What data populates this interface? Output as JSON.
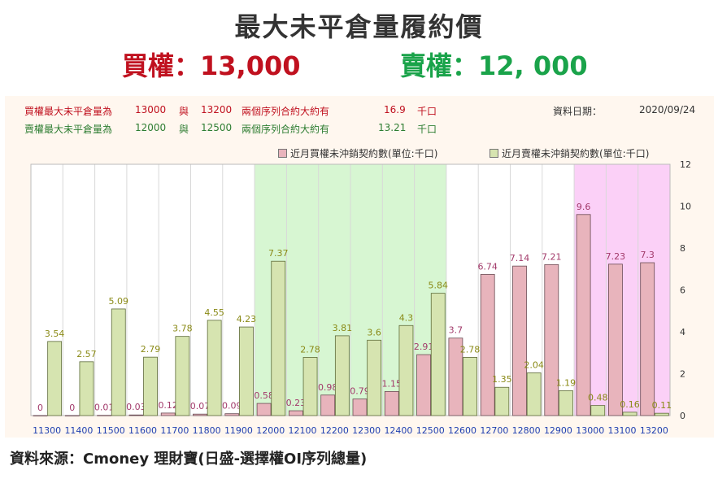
{
  "title": "最大未平倉量履約價",
  "headline": {
    "call": "買權：13,000",
    "put": "賣權：12, 000",
    "call_color": "#c0111f",
    "put_color": "#1aa34a"
  },
  "info": {
    "row1": {
      "label": "買權最大未平倉量為",
      "v1": "13000",
      "conj": "與",
      "v2": "13200",
      "desc": "兩個序列合約大約有",
      "amount": "16.9",
      "unit": "千口"
    },
    "row2": {
      "label": "賣權最大未平倉量為",
      "v1": "12000",
      "conj": "與",
      "v2": "12500",
      "desc": "兩個序列合約大約有",
      "amount": "13.21",
      "unit": "千口"
    },
    "date_label": "資料日期：",
    "date_value": "2020/09/24"
  },
  "source": "資料來源：Cmoney 理財寶(日盛-選擇權OI序列總量)",
  "chart_data": {
    "type": "bar",
    "categories": [
      "11300",
      "11400",
      "11500",
      "11600",
      "11700",
      "11800",
      "11900",
      "12000",
      "12100",
      "12200",
      "12300",
      "12400",
      "12500",
      "12600",
      "12700",
      "12800",
      "12900",
      "13000",
      "13100",
      "13200"
    ],
    "series": [
      {
        "name": "近月買權未沖銷契約數(單位:千口)",
        "color": "#e8b4bc",
        "label_color": "#a23a6a",
        "values": [
          0,
          0,
          0.01,
          0.03,
          0.12,
          0.07,
          0.09,
          0.58,
          0.23,
          0.98,
          0.79,
          1.15,
          2.91,
          3.7,
          6.74,
          7.14,
          7.21,
          9.6,
          7.23,
          7.3
        ]
      },
      {
        "name": "近月賣權未沖銷契約數(單位:千口)",
        "color": "#d6e4b0",
        "label_color": "#8a8a16",
        "values": [
          3.54,
          2.57,
          5.09,
          2.79,
          3.78,
          4.55,
          4.23,
          7.37,
          2.78,
          3.81,
          3.6,
          4.3,
          5.84,
          2.78,
          1.35,
          2.04,
          1.19,
          0.48,
          0.16,
          0.11
        ]
      }
    ],
    "ylim": [
      0,
      12
    ],
    "yticks": [
      0,
      2,
      4,
      6,
      8,
      10,
      12
    ],
    "y_axis_side": "right",
    "grid": "vertical",
    "highlight_green": [
      "12000",
      "12500"
    ],
    "highlight_pink": [
      "13000",
      "13200"
    ],
    "highlight_green_color": "#d7f6d2",
    "highlight_pink_color": "#fbd0f7",
    "xlabel": "",
    "ylabel": ""
  }
}
